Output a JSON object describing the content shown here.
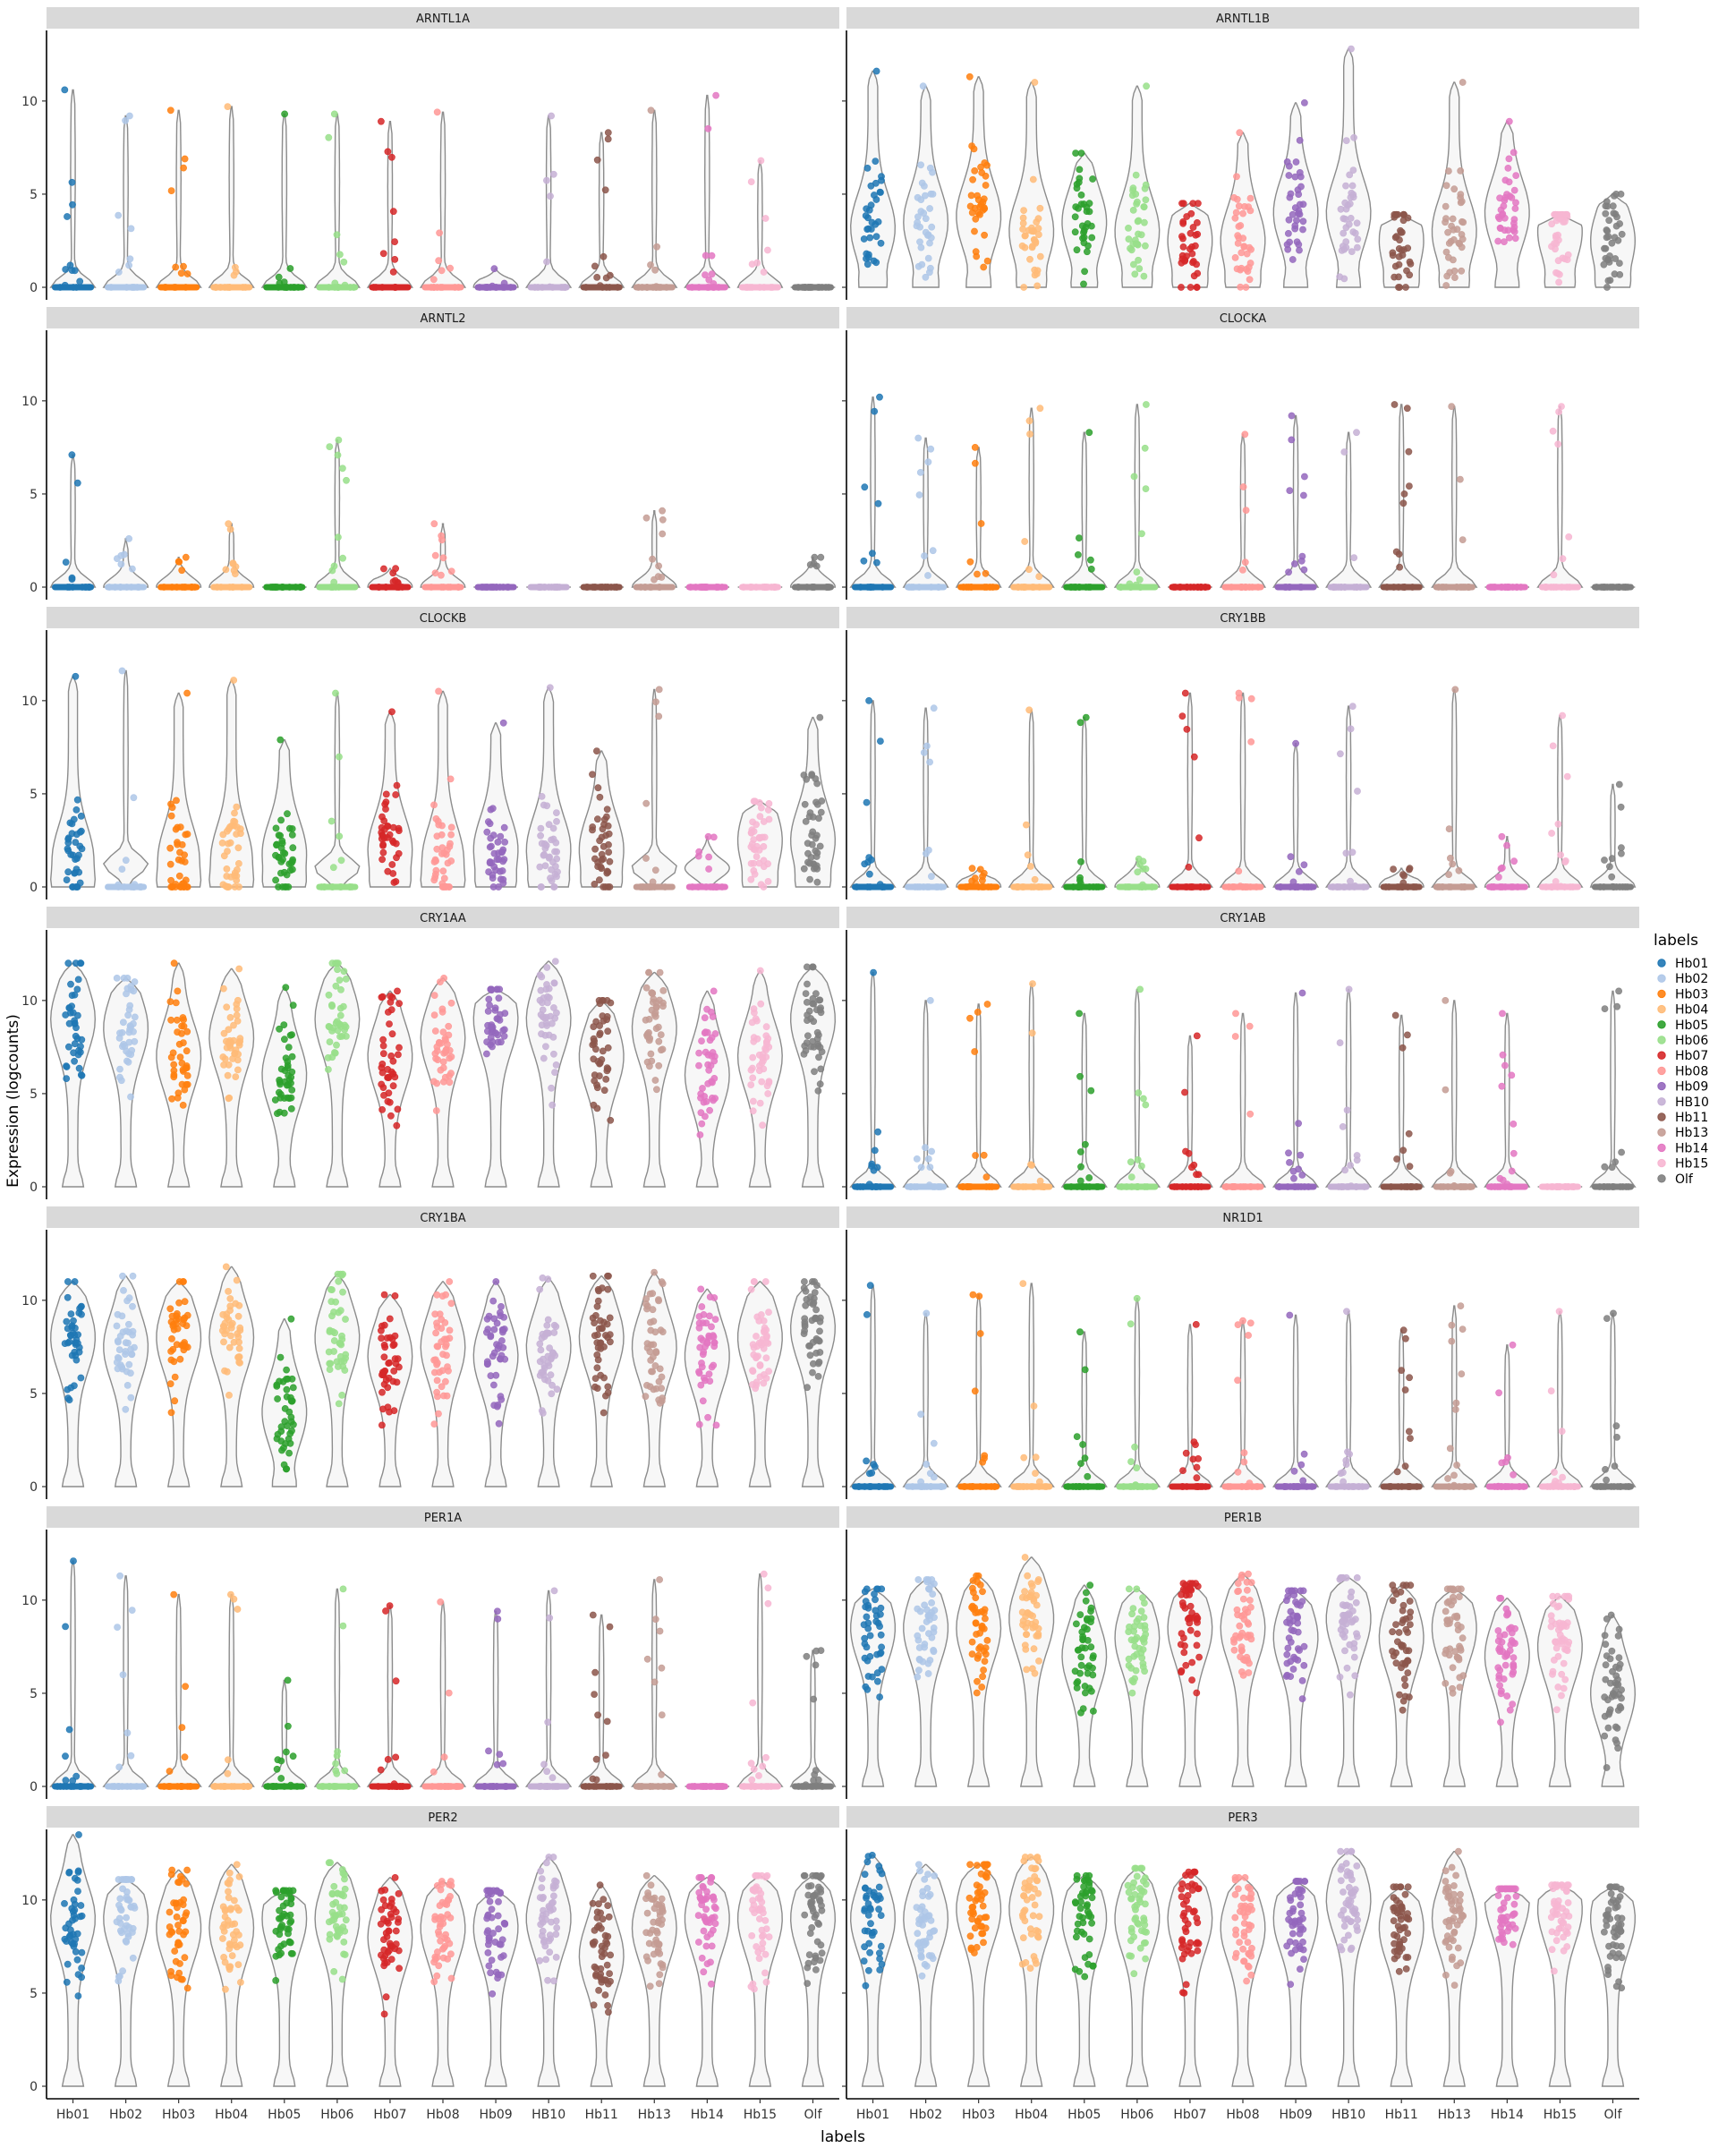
{
  "chart_data": {
    "type": "violin",
    "title": "",
    "xlabel": "labels",
    "ylabel": "Expression (logcounts)",
    "ylim": [
      0,
      13.5
    ],
    "yticks": [
      0,
      5,
      10
    ],
    "grid": false,
    "legend_placement": "right",
    "legend": {
      "title": "labels",
      "entries": [
        {
          "label": "Hb01",
          "color": "#1f77b4"
        },
        {
          "label": "Hb02",
          "color": "#aec7e8"
        },
        {
          "label": "Hb03",
          "color": "#ff7f0e"
        },
        {
          "label": "Hb04",
          "color": "#ffbb78"
        },
        {
          "label": "Hb05",
          "color": "#2ca02c"
        },
        {
          "label": "Hb06",
          "color": "#98df8a"
        },
        {
          "label": "Hb07",
          "color": "#d62728"
        },
        {
          "label": "Hb08",
          "color": "#ff9896"
        },
        {
          "label": "Hb09",
          "color": "#9467bd"
        },
        {
          "label": "HB10",
          "color": "#c5b0d5"
        },
        {
          "label": "Hb11",
          "color": "#8c564b"
        },
        {
          "label": "Hb13",
          "color": "#c49c94"
        },
        {
          "label": "Hb14",
          "color": "#e377c2"
        },
        {
          "label": "Hb15",
          "color": "#f7b6d2"
        },
        {
          "label": "Olf",
          "color": "#7f7f7f"
        }
      ]
    },
    "categories": [
      "Hb01",
      "Hb02",
      "Hb03",
      "Hb04",
      "Hb05",
      "Hb06",
      "Hb07",
      "Hb08",
      "Hb09",
      "HB10",
      "Hb11",
      "Hb13",
      "Hb14",
      "Hb15",
      "Olf"
    ],
    "panels": [
      {
        "gene": "ARNTL1A",
        "median": [
          0,
          0,
          0,
          0,
          0,
          0,
          0,
          0,
          0,
          0,
          0,
          0,
          0,
          0,
          0
        ],
        "max": [
          10.6,
          9.2,
          9.5,
          9.7,
          9.3,
          9.3,
          8.9,
          9.4,
          1.0,
          9.2,
          8.3,
          9.5,
          10.3,
          6.8,
          0
        ]
      },
      {
        "gene": "ARNTL1B",
        "median": [
          3.2,
          3.5,
          3.8,
          3.0,
          3.5,
          3.0,
          2.5,
          2.5,
          4.0,
          4.0,
          2.5,
          3.0,
          4.0,
          3.0,
          2.5
        ],
        "max": [
          11.6,
          10.8,
          11.3,
          11.0,
          7.2,
          10.8,
          4.5,
          8.3,
          9.9,
          12.8,
          3.9,
          11.0,
          8.9,
          3.9,
          5.0
        ]
      },
      {
        "gene": "ARNTL2",
        "median": [
          0,
          0,
          0,
          0,
          0,
          0,
          0,
          0,
          0,
          0,
          0,
          0,
          0,
          0,
          0
        ],
        "max": [
          7.1,
          2.6,
          1.6,
          3.4,
          0,
          7.9,
          1.0,
          3.4,
          0,
          0,
          0,
          4.1,
          0,
          0,
          1.6
        ]
      },
      {
        "gene": "CLOCKA",
        "median": [
          0,
          0,
          0,
          0,
          0,
          0,
          0,
          0,
          0,
          0,
          0,
          0,
          0,
          0,
          0
        ],
        "max": [
          10.2,
          8.0,
          7.5,
          9.6,
          8.3,
          9.8,
          0,
          8.2,
          9.2,
          8.3,
          9.8,
          9.7,
          0,
          9.7,
          0
        ]
      },
      {
        "gene": "CLOCKB",
        "median": [
          1.5,
          1.2,
          1.5,
          1.5,
          1.8,
          1.0,
          2.0,
          1.5,
          2.0,
          2.0,
          2.0,
          1.0,
          1.0,
          2.5,
          2.5
        ],
        "max": [
          11.3,
          11.6,
          10.4,
          11.1,
          7.9,
          10.4,
          9.4,
          10.5,
          8.8,
          10.7,
          7.3,
          10.6,
          2.7,
          4.6,
          9.1
        ]
      },
      {
        "gene": "CRY1BB",
        "median": [
          0,
          0,
          0,
          0,
          0,
          0,
          0,
          0,
          0,
          0,
          0,
          0,
          0,
          0,
          0
        ],
        "max": [
          10.0,
          9.6,
          1.0,
          9.5,
          9.1,
          1.5,
          10.4,
          10.4,
          7.7,
          9.7,
          1.0,
          10.6,
          2.7,
          9.2,
          5.5
        ]
      },
      {
        "gene": "CRY1AA",
        "median": [
          9.0,
          8.5,
          7.0,
          8.0,
          6.0,
          9.0,
          7.0,
          8.0,
          9.0,
          9.0,
          7.0,
          8.5,
          6.0,
          7.0,
          9.0
        ],
        "max": [
          12.0,
          11.2,
          12.0,
          11.7,
          10.7,
          12.0,
          10.5,
          11.2,
          10.6,
          12.1,
          10.0,
          11.5,
          10.5,
          11.6,
          11.8
        ]
      },
      {
        "gene": "CRY1AB",
        "median": [
          0,
          0,
          0,
          0,
          0,
          0,
          0,
          0,
          0,
          0,
          0,
          0,
          0,
          0,
          0
        ],
        "max": [
          11.5,
          10.0,
          9.8,
          10.9,
          9.3,
          10.6,
          8.1,
          9.3,
          10.4,
          10.6,
          9.2,
          10.0,
          9.3,
          0,
          10.5
        ]
      },
      {
        "gene": "CRY1BA",
        "median": [
          8.0,
          7.5,
          8.0,
          8.0,
          4.0,
          8.0,
          7.0,
          7.5,
          7.0,
          7.5,
          8.0,
          7.5,
          7.0,
          8.0,
          8.5
        ],
        "max": [
          11.0,
          11.3,
          11.0,
          11.8,
          9.0,
          11.4,
          10.3,
          11.0,
          11.0,
          11.2,
          11.3,
          11.5,
          10.6,
          11.0,
          11.0
        ]
      },
      {
        "gene": "NR1D1",
        "median": [
          0,
          0,
          0,
          0,
          0,
          0,
          0,
          0,
          0,
          0,
          0,
          0,
          0,
          0,
          0
        ],
        "max": [
          10.8,
          9.3,
          10.3,
          10.9,
          8.3,
          10.1,
          8.7,
          8.9,
          9.2,
          9.4,
          8.4,
          9.7,
          7.6,
          9.4,
          9.3
        ]
      },
      {
        "gene": "PER1A",
        "median": [
          0,
          0,
          0,
          0,
          0,
          0,
          0,
          0,
          0,
          0,
          0,
          0,
          0,
          0,
          0
        ],
        "max": [
          12.1,
          11.3,
          10.3,
          10.3,
          5.7,
          10.6,
          9.7,
          9.9,
          9.4,
          10.5,
          9.2,
          11.1,
          0,
          11.4,
          7.3
        ]
      },
      {
        "gene": "PER1B",
        "median": [
          8.5,
          8.5,
          8.5,
          9.0,
          7.0,
          8.0,
          8.5,
          8.5,
          8.0,
          9.0,
          8.0,
          8.5,
          7.0,
          7.5,
          5.0
        ],
        "max": [
          10.6,
          11.1,
          11.3,
          12.3,
          10.8,
          10.6,
          10.9,
          11.4,
          10.5,
          11.2,
          10.8,
          10.6,
          10.1,
          10.2,
          9.2
        ]
      },
      {
        "gene": "PER2",
        "median": [
          9.0,
          9.0,
          8.5,
          8.5,
          9.0,
          9.0,
          8.0,
          8.5,
          8.5,
          9.0,
          7.0,
          8.5,
          9.0,
          9.0,
          9.0
        ],
        "max": [
          13.5,
          11.1,
          11.6,
          11.9,
          10.5,
          12.0,
          11.2,
          11.0,
          10.5,
          12.3,
          10.8,
          11.3,
          11.2,
          11.3,
          11.3
        ]
      },
      {
        "gene": "PER3",
        "median": [
          9.0,
          9.0,
          9.5,
          9.5,
          9.0,
          9.0,
          9.0,
          8.5,
          9.0,
          10.0,
          8.5,
          9.0,
          10.0,
          9.5,
          9.0
        ],
        "max": [
          12.4,
          11.9,
          11.9,
          12.3,
          11.3,
          11.7,
          11.5,
          11.2,
          11.0,
          12.6,
          10.7,
          12.6,
          10.6,
          10.8,
          10.7
        ]
      }
    ]
  }
}
